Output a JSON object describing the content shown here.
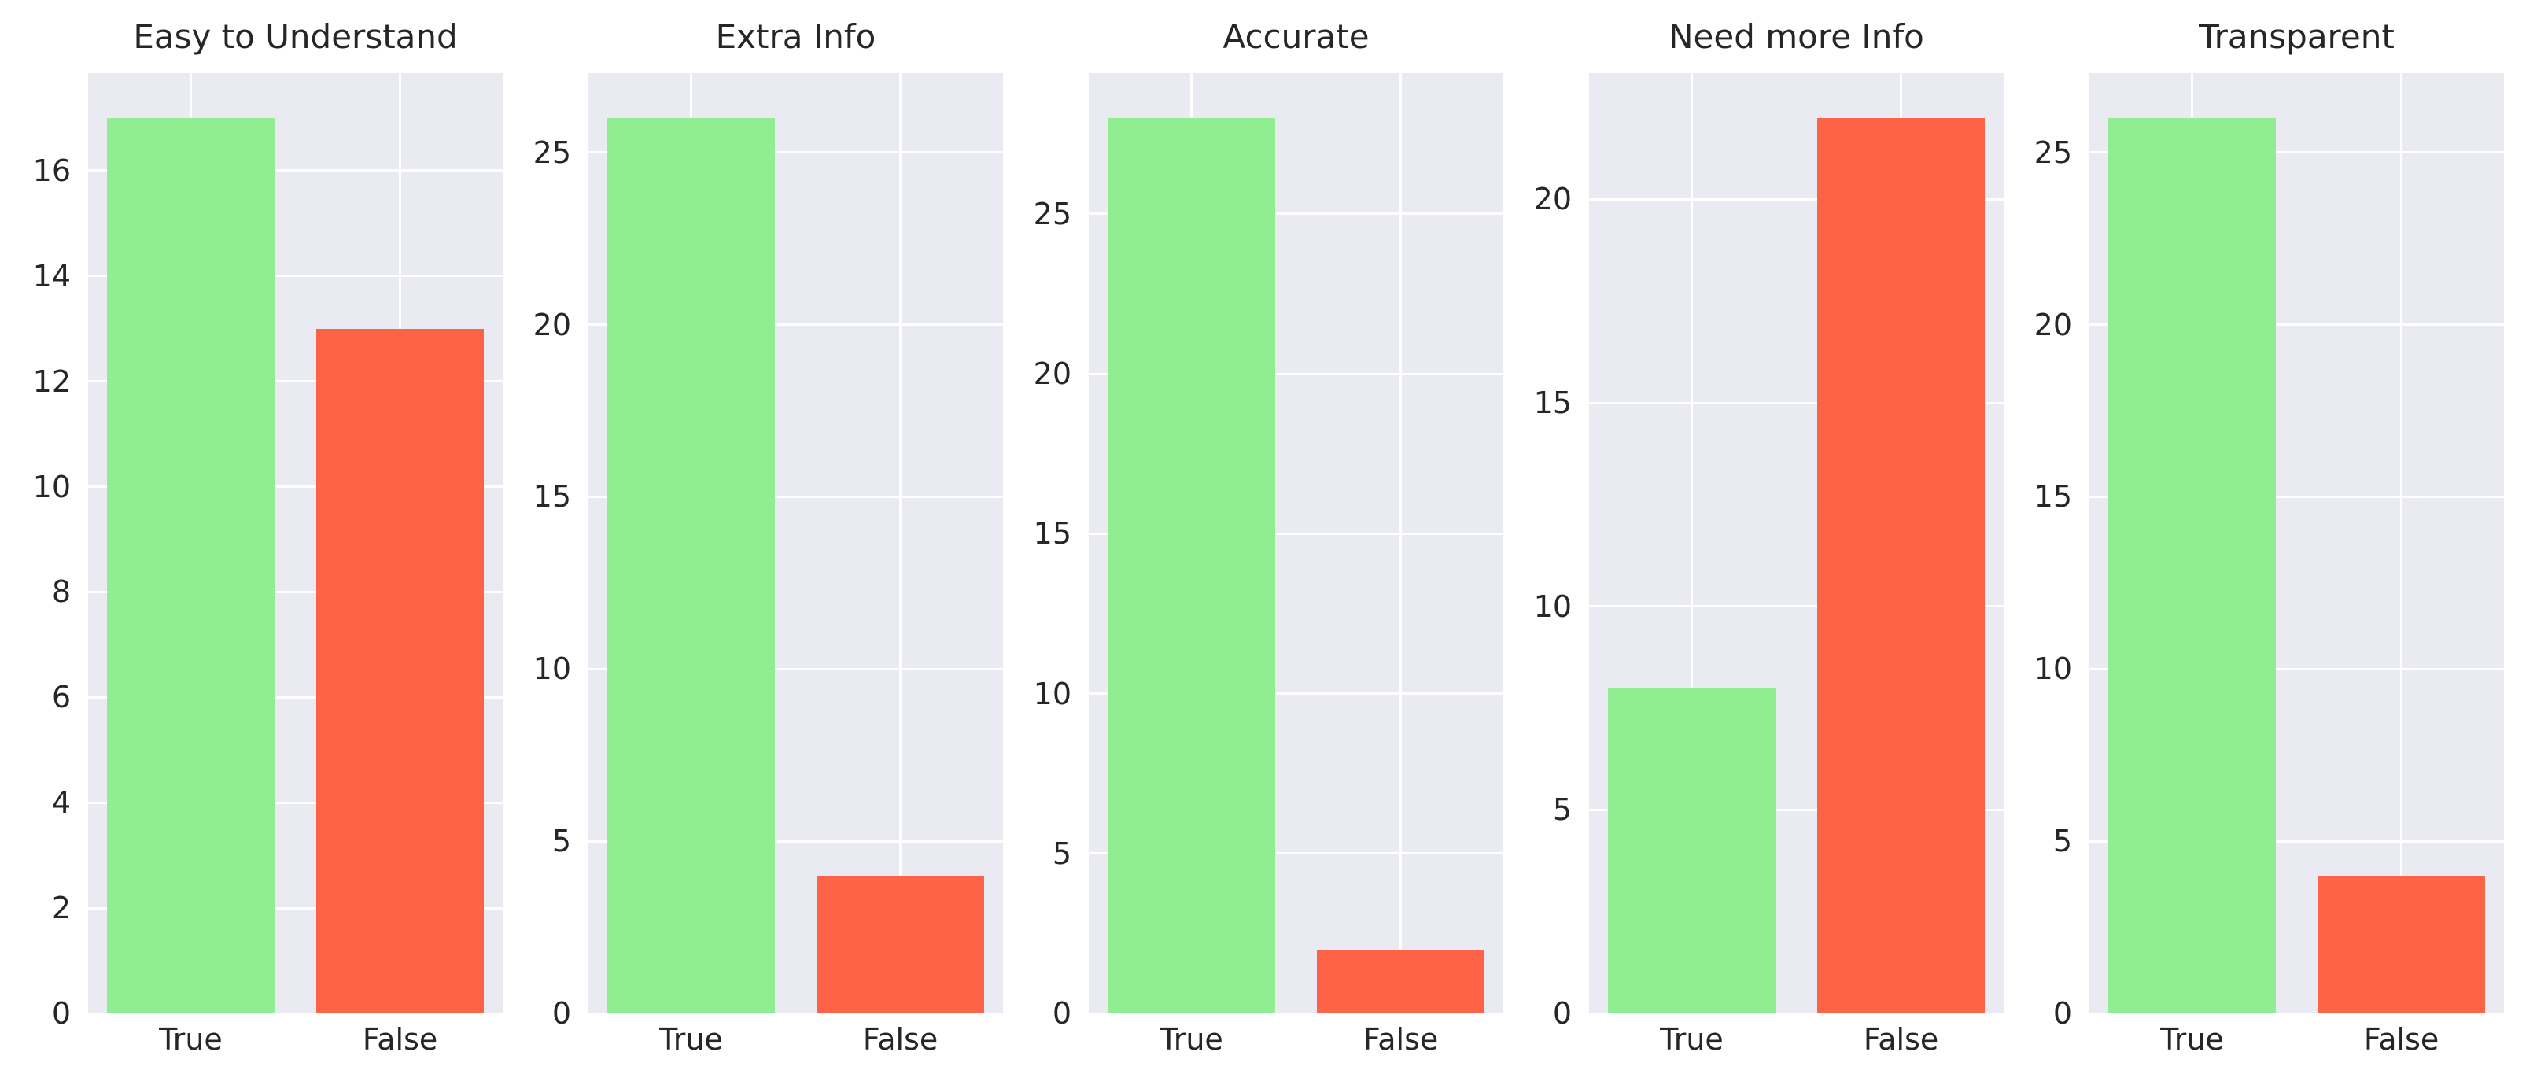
{
  "figure": {
    "background": "#ffffff",
    "plot_background": "#eaeaf2",
    "grid_color": "#ffffff",
    "text_color": "#262626",
    "true_bar_color": "#90ee90",
    "false_bar_color": "#ff6347"
  },
  "chart_data": [
    {
      "type": "bar",
      "title": "Easy to Understand",
      "categories": [
        "True",
        "False"
      ],
      "values": [
        17,
        13
      ],
      "bar_colors": [
        "#90ee90",
        "#ff6347"
      ],
      "yticks": [
        0,
        2,
        4,
        6,
        8,
        10,
        12,
        14,
        16
      ],
      "ylim": [
        0,
        17.85
      ],
      "grid": true,
      "legend": "none"
    },
    {
      "type": "bar",
      "title": "Extra Info",
      "categories": [
        "True",
        "False"
      ],
      "values": [
        26,
        4
      ],
      "bar_colors": [
        "#90ee90",
        "#ff6347"
      ],
      "yticks": [
        0,
        5,
        10,
        15,
        20,
        25
      ],
      "ylim": [
        0,
        27.3
      ],
      "grid": true,
      "legend": "none"
    },
    {
      "type": "bar",
      "title": "Accurate",
      "categories": [
        "True",
        "False"
      ],
      "values": [
        28,
        2
      ],
      "bar_colors": [
        "#90ee90",
        "#ff6347"
      ],
      "yticks": [
        0,
        5,
        10,
        15,
        20,
        25
      ],
      "ylim": [
        0,
        29.4
      ],
      "grid": true,
      "legend": "none"
    },
    {
      "type": "bar",
      "title": "Need more Info",
      "categories": [
        "True",
        "False"
      ],
      "values": [
        8,
        22
      ],
      "bar_colors": [
        "#90ee90",
        "#ff6347"
      ],
      "yticks": [
        0,
        5,
        10,
        15,
        20
      ],
      "ylim": [
        0,
        23.1
      ],
      "grid": true,
      "legend": "none"
    },
    {
      "type": "bar",
      "title": "Transparent",
      "categories": [
        "True",
        "False"
      ],
      "values": [
        26,
        4
      ],
      "bar_colors": [
        "#90ee90",
        "#ff6347"
      ],
      "yticks": [
        0,
        5,
        10,
        15,
        20,
        25
      ],
      "ylim": [
        0,
        27.3
      ],
      "grid": true,
      "legend": "none"
    }
  ]
}
